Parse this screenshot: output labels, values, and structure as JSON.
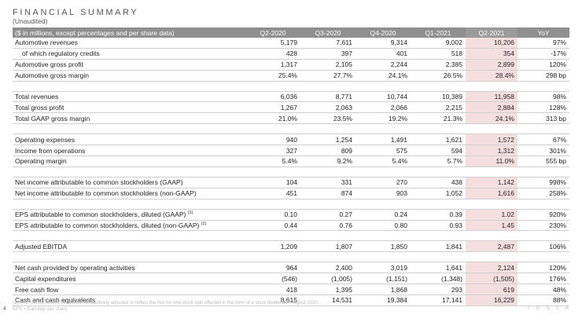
{
  "title": "FINANCIAL SUMMARY",
  "subtitle": "(Unaudited)",
  "header": [
    "($ in millions, except percentages and per share data)",
    "Q2-2020",
    "Q3-2020",
    "Q4-2020",
    "Q1-2021",
    "Q2-2021",
    "YoY"
  ],
  "groups": [
    [
      {
        "label": "Automotive revenues",
        "values": [
          "5,179",
          "7,611",
          "9,314",
          "9,002",
          "10,206",
          "97%"
        ]
      },
      {
        "label": "of which regulatory credits",
        "indent": true,
        "values": [
          "428",
          "397",
          "401",
          "518",
          "354",
          "-17%"
        ]
      },
      {
        "label": "Automotive gross profit",
        "values": [
          "1,317",
          "2,105",
          "2,244",
          "2,385",
          "2,899",
          "120%"
        ]
      },
      {
        "label": "Automotive gross margin",
        "values": [
          "25.4%",
          "27.7%",
          "24.1%",
          "26.5%",
          "28.4%",
          "298 bp"
        ]
      }
    ],
    [
      {
        "label": "Total revenues",
        "values": [
          "6,036",
          "8,771",
          "10,744",
          "10,389",
          "11,958",
          "98%"
        ]
      },
      {
        "label": "Total gross profit",
        "values": [
          "1,267",
          "2,063",
          "2,066",
          "2,215",
          "2,884",
          "128%"
        ]
      },
      {
        "label": "Total GAAP gross margin",
        "values": [
          "21.0%",
          "23.5%",
          "19.2%",
          "21.3%",
          "24.1%",
          "313 bp"
        ]
      }
    ],
    [
      {
        "label": "Operating expenses",
        "values": [
          "940",
          "1,254",
          "1,491",
          "1,621",
          "1,572",
          "67%"
        ]
      },
      {
        "label": "Income from operations",
        "values": [
          "327",
          "809",
          "575",
          "594",
          "1,312",
          "301%"
        ]
      },
      {
        "label": "Operating margin",
        "values": [
          "5.4%",
          "9.2%",
          "5.4%",
          "5.7%",
          "11.0%",
          "555 bp"
        ]
      }
    ],
    [
      {
        "label": "Net income attributable to common stockholders (GAAP)",
        "values": [
          "104",
          "331",
          "270",
          "438",
          "1,142",
          "998%"
        ]
      },
      {
        "label": "Net income attributable to common stockholders (non-GAAP)",
        "values": [
          "451",
          "874",
          "903",
          "1,052",
          "1,616",
          "258%"
        ]
      }
    ],
    [
      {
        "label": "EPS attributable to common stockholders, diluted (GAAP)",
        "sup": "(1)",
        "values": [
          "0.10",
          "0.27",
          "0.24",
          "0.39",
          "1.02",
          "920%"
        ]
      },
      {
        "label": "EPS attributable to common stockholders, diluted (non-GAAP)",
        "sup": "(1)",
        "values": [
          "0.44",
          "0.76",
          "0.80",
          "0.93",
          "1.45",
          "230%"
        ]
      }
    ],
    [
      {
        "label": "Adjusted EBITDA",
        "values": [
          "1,209",
          "1,807",
          "1,850",
          "1,841",
          "2,487",
          "106%"
        ]
      }
    ],
    [
      {
        "label": "Net cash provided by operating activities",
        "values": [
          "964",
          "2,400",
          "3,019",
          "1,641",
          "2,124",
          "120%"
        ]
      },
      {
        "label": "Capital expenditures",
        "values": [
          "(546)",
          "(1,005)",
          "(1,151)",
          "(1,348)",
          "(1,505)",
          "176%"
        ]
      },
      {
        "label": "Free cash flow",
        "values": [
          "418",
          "1,395",
          "1,868",
          "293",
          "619",
          "48%"
        ]
      },
      {
        "label": "Cash and cash equivalents",
        "values": [
          "8,615",
          "14,531",
          "19,384",
          "17,141",
          "16,229",
          "88%"
        ]
      }
    ]
  ],
  "footnotes": [
    "(1) Prior period results have been retroactively adjusted to reflect the five-for-one stock split effected in the form of a stock dividend in August 2020.",
    "EPS = Earnings per share"
  ],
  "page_number": "4",
  "logo_text": "T E S L A",
  "highlight_color": "#f5dede",
  "header_color": "#8f8f8f"
}
